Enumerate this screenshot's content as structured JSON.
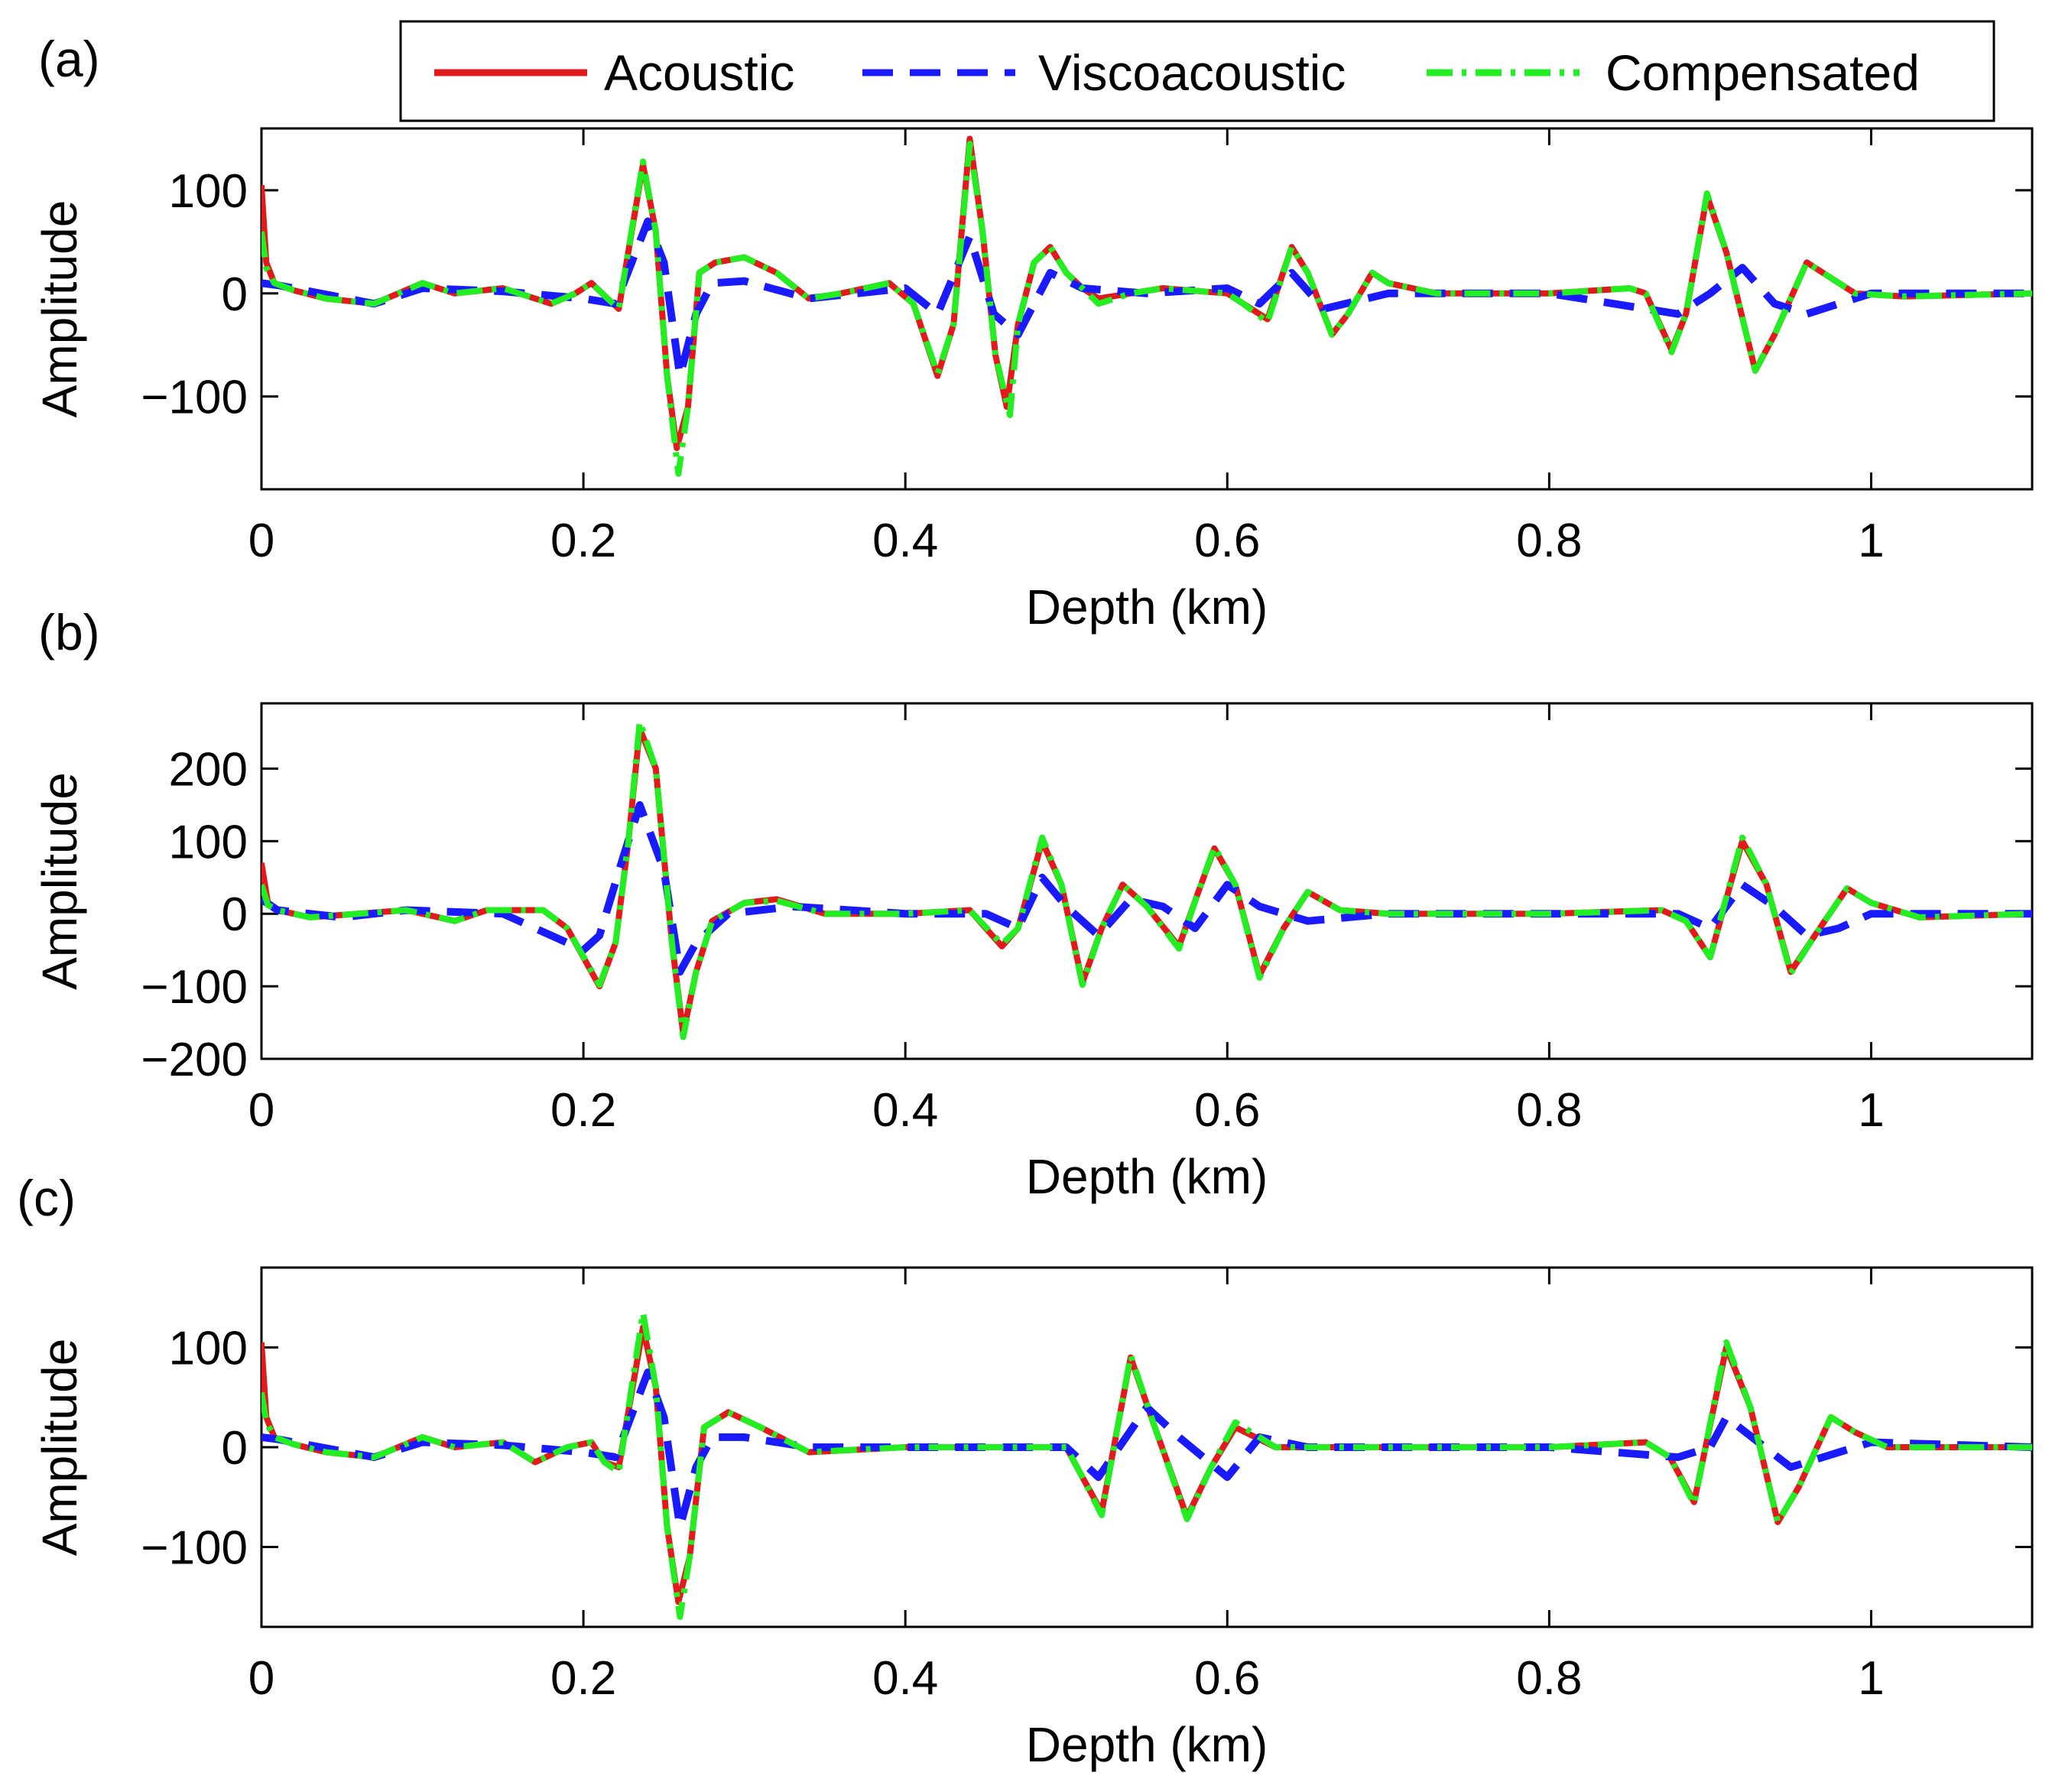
{
  "chart_data": [
    {
      "type": "line",
      "panel_label": "(a)",
      "xlabel": "Depth (km)",
      "ylabel": "Amplitude",
      "xlim": [
        0,
        1.1
      ],
      "ylim": [
        -190,
        160
      ],
      "xticks": [
        0,
        0.2,
        0.4,
        0.6,
        0.8,
        1
      ],
      "xtick_labels": [
        "0",
        "0.2",
        "0.4",
        "0.6",
        "0.8",
        "1"
      ],
      "yticks": [
        100,
        0,
        -100
      ],
      "ytick_labels": [
        "100",
        "0",
        "−100"
      ],
      "series": [
        {
          "name": "Acoustic",
          "color": "#e31a1c",
          "x": [
            0,
            0.003,
            0.008,
            0.02,
            0.04,
            0.07,
            0.1,
            0.12,
            0.15,
            0.17,
            0.18,
            0.195,
            0.205,
            0.215,
            0.222,
            0.237,
            0.245,
            0.252,
            0.258,
            0.265,
            0.272,
            0.282,
            0.3,
            0.32,
            0.34,
            0.36,
            0.39,
            0.405,
            0.42,
            0.43,
            0.44,
            0.448,
            0.456,
            0.463,
            0.47,
            0.48,
            0.49,
            0.5,
            0.51,
            0.52,
            0.54,
            0.56,
            0.6,
            0.61,
            0.625,
            0.64,
            0.65,
            0.665,
            0.675,
            0.69,
            0.7,
            0.73,
            0.8,
            0.85,
            0.86,
            0.876,
            0.885,
            0.898,
            0.91,
            0.928,
            0.94,
            0.96,
            0.975,
            0.99,
            1.02,
            1.1
          ],
          "y": [
            105,
            30,
            10,
            3,
            -5,
            -10,
            10,
            0,
            5,
            -5,
            -10,
            0,
            10,
            -5,
            -15,
            125,
            60,
            -80,
            -150,
            -110,
            20,
            30,
            35,
            20,
            -5,
            0,
            10,
            -10,
            -80,
            -30,
            150,
            60,
            -60,
            -110,
            -30,
            30,
            45,
            20,
            5,
            -5,
            0,
            5,
            0,
            -10,
            -25,
            45,
            20,
            -40,
            -20,
            20,
            10,
            0,
            0,
            5,
            0,
            -55,
            -20,
            95,
            40,
            -75,
            -40,
            30,
            15,
            0,
            -3,
            0
          ]
        },
        {
          "name": "Viscoacoustic",
          "color": "#1a1aff",
          "x": [
            0,
            0.01,
            0.03,
            0.07,
            0.1,
            0.15,
            0.2,
            0.22,
            0.24,
            0.25,
            0.26,
            0.27,
            0.28,
            0.3,
            0.34,
            0.4,
            0.42,
            0.44,
            0.455,
            0.47,
            0.49,
            0.51,
            0.55,
            0.6,
            0.62,
            0.64,
            0.66,
            0.7,
            0.8,
            0.88,
            0.9,
            0.92,
            0.94,
            0.96,
            1.0,
            1.1
          ],
          "y": [
            10,
            8,
            2,
            -10,
            5,
            2,
            -5,
            -10,
            70,
            30,
            -80,
            -20,
            10,
            12,
            -5,
            5,
            -20,
            55,
            -20,
            -40,
            20,
            5,
            0,
            5,
            -10,
            20,
            -15,
            0,
            0,
            -20,
            0,
            25,
            -10,
            -20,
            0,
            0
          ]
        },
        {
          "name": "Compensated",
          "color": "#22ee22",
          "x": [
            0,
            0.003,
            0.008,
            0.02,
            0.04,
            0.07,
            0.1,
            0.12,
            0.15,
            0.17,
            0.18,
            0.195,
            0.205,
            0.215,
            0.222,
            0.237,
            0.245,
            0.252,
            0.259,
            0.265,
            0.272,
            0.282,
            0.3,
            0.32,
            0.34,
            0.36,
            0.39,
            0.405,
            0.42,
            0.43,
            0.44,
            0.448,
            0.456,
            0.465,
            0.47,
            0.48,
            0.49,
            0.5,
            0.51,
            0.52,
            0.54,
            0.56,
            0.6,
            0.61,
            0.625,
            0.64,
            0.65,
            0.665,
            0.675,
            0.69,
            0.7,
            0.73,
            0.8,
            0.85,
            0.86,
            0.876,
            0.885,
            0.898,
            0.91,
            0.928,
            0.94,
            0.96,
            0.975,
            0.99,
            1.02,
            1.1
          ],
          "y": [
            60,
            25,
            10,
            3,
            -5,
            -10,
            10,
            0,
            5,
            -5,
            -10,
            0,
            10,
            -5,
            -15,
            128,
            60,
            -80,
            -175,
            -110,
            20,
            30,
            35,
            20,
            -5,
            0,
            10,
            -10,
            -78,
            -30,
            145,
            60,
            -60,
            -118,
            -30,
            30,
            45,
            20,
            5,
            -10,
            0,
            5,
            0,
            -10,
            -28,
            45,
            20,
            -40,
            -20,
            20,
            10,
            0,
            0,
            5,
            0,
            -57,
            -20,
            97,
            40,
            -75,
            -40,
            30,
            15,
            0,
            -3,
            0
          ]
        }
      ]
    },
    {
      "type": "line",
      "panel_label": "(b)",
      "xlabel": "Depth (km)",
      "ylabel": "Amplitude",
      "xlim": [
        0,
        1.1
      ],
      "ylim": [
        -200,
        290
      ],
      "xticks": [
        0,
        0.2,
        0.4,
        0.6,
        0.8,
        1
      ],
      "xtick_labels": [
        "0",
        "0.2",
        "0.4",
        "0.6",
        "0.8",
        "1"
      ],
      "yticks": [
        200,
        100,
        0,
        -100,
        -200
      ],
      "ytick_labels": [
        "200",
        "100",
        "0",
        "−100",
        "−200"
      ],
      "series": [
        {
          "name": "Acoustic",
          "color": "#e31a1c",
          "x": [
            0,
            0.004,
            0.01,
            0.03,
            0.06,
            0.09,
            0.12,
            0.14,
            0.175,
            0.19,
            0.21,
            0.22,
            0.228,
            0.235,
            0.245,
            0.255,
            0.262,
            0.27,
            0.28,
            0.3,
            0.32,
            0.35,
            0.4,
            0.44,
            0.46,
            0.47,
            0.485,
            0.497,
            0.51,
            0.522,
            0.535,
            0.55,
            0.57,
            0.582,
            0.592,
            0.605,
            0.62,
            0.635,
            0.65,
            0.67,
            0.7,
            0.8,
            0.87,
            0.885,
            0.9,
            0.92,
            0.935,
            0.95,
            0.965,
            0.985,
            1.0,
            1.03,
            1.1
          ],
          "y": [
            70,
            15,
            5,
            -5,
            0,
            5,
            -10,
            5,
            5,
            -20,
            -100,
            -40,
            100,
            255,
            200,
            -40,
            -165,
            -80,
            -10,
            15,
            20,
            0,
            0,
            5,
            -45,
            -20,
            100,
            40,
            -95,
            -20,
            40,
            10,
            -45,
            30,
            90,
            40,
            -85,
            -20,
            30,
            5,
            0,
            0,
            5,
            -10,
            -60,
            100,
            40,
            -80,
            -30,
            35,
            15,
            -5,
            0
          ]
        },
        {
          "name": "Viscoacoustic",
          "color": "#1a1aff",
          "x": [
            0,
            0.01,
            0.05,
            0.09,
            0.15,
            0.2,
            0.21,
            0.225,
            0.235,
            0.25,
            0.26,
            0.27,
            0.29,
            0.33,
            0.4,
            0.45,
            0.47,
            0.485,
            0.5,
            0.52,
            0.54,
            0.56,
            0.58,
            0.6,
            0.62,
            0.65,
            0.7,
            0.88,
            0.9,
            0.92,
            0.94,
            0.96,
            0.98,
            1.0,
            1.1
          ],
          "y": [
            20,
            5,
            -5,
            5,
            0,
            -50,
            -30,
            80,
            150,
            60,
            -80,
            -40,
            0,
            10,
            0,
            0,
            -20,
            50,
            10,
            -30,
            20,
            10,
            -20,
            40,
            10,
            -10,
            0,
            0,
            -20,
            40,
            10,
            -30,
            -20,
            0,
            0
          ]
        },
        {
          "name": "Compensated",
          "color": "#22ee22",
          "x": [
            0,
            0.004,
            0.01,
            0.03,
            0.06,
            0.09,
            0.12,
            0.14,
            0.175,
            0.19,
            0.21,
            0.22,
            0.228,
            0.235,
            0.245,
            0.255,
            0.262,
            0.27,
            0.28,
            0.3,
            0.32,
            0.35,
            0.4,
            0.44,
            0.46,
            0.47,
            0.485,
            0.497,
            0.51,
            0.522,
            0.535,
            0.55,
            0.57,
            0.582,
            0.592,
            0.605,
            0.62,
            0.635,
            0.65,
            0.67,
            0.7,
            0.8,
            0.87,
            0.885,
            0.9,
            0.92,
            0.935,
            0.95,
            0.965,
            0.985,
            1.0,
            1.03,
            1.1
          ],
          "y": [
            40,
            12,
            5,
            -5,
            0,
            5,
            -10,
            5,
            5,
            -20,
            -98,
            -40,
            100,
            265,
            200,
            -40,
            -170,
            -80,
            -10,
            15,
            18,
            0,
            0,
            5,
            -42,
            -20,
            105,
            40,
            -98,
            -20,
            40,
            10,
            -48,
            30,
            92,
            40,
            -88,
            -20,
            30,
            5,
            0,
            0,
            5,
            -10,
            -60,
            105,
            40,
            -82,
            -30,
            35,
            15,
            -5,
            0
          ]
        }
      ]
    },
    {
      "type": "line",
      "panel_label": "(c)",
      "xlabel": "Depth (km)",
      "ylabel": "Amplitude",
      "xlim": [
        0,
        1.1
      ],
      "ylim": [
        -180,
        180
      ],
      "xticks": [
        0,
        0.2,
        0.4,
        0.6,
        0.8,
        1
      ],
      "xtick_labels": [
        "0",
        "0.2",
        "0.4",
        "0.6",
        "0.8",
        "1"
      ],
      "yticks": [
        100,
        0,
        -100
      ],
      "ytick_labels": [
        "100",
        "0",
        "−100"
      ],
      "series": [
        {
          "name": "Acoustic",
          "color": "#e31a1c",
          "x": [
            0,
            0.003,
            0.008,
            0.02,
            0.04,
            0.07,
            0.1,
            0.12,
            0.15,
            0.17,
            0.19,
            0.205,
            0.213,
            0.222,
            0.237,
            0.245,
            0.252,
            0.259,
            0.266,
            0.275,
            0.29,
            0.31,
            0.34,
            0.4,
            0.45,
            0.5,
            0.51,
            0.522,
            0.54,
            0.555,
            0.575,
            0.59,
            0.605,
            0.63,
            0.65,
            0.8,
            0.86,
            0.875,
            0.89,
            0.91,
            0.925,
            0.942,
            0.955,
            0.975,
            0.99,
            1.01,
            1.1
          ],
          "y": [
            105,
            30,
            10,
            3,
            -5,
            -10,
            10,
            0,
            5,
            -15,
            0,
            5,
            -15,
            -20,
            120,
            60,
            -80,
            -155,
            -110,
            20,
            35,
            20,
            -5,
            0,
            0,
            0,
            -30,
            -65,
            90,
            20,
            -70,
            -20,
            20,
            0,
            0,
            0,
            5,
            -10,
            -55,
            100,
            40,
            -75,
            -40,
            30,
            15,
            0,
            0
          ]
        },
        {
          "name": "Viscoacoustic",
          "color": "#1a1aff",
          "x": [
            0,
            0.01,
            0.03,
            0.07,
            0.1,
            0.15,
            0.2,
            0.22,
            0.24,
            0.25,
            0.26,
            0.27,
            0.28,
            0.3,
            0.34,
            0.4,
            0.5,
            0.52,
            0.55,
            0.57,
            0.6,
            0.62,
            0.65,
            0.8,
            0.88,
            0.9,
            0.91,
            0.93,
            0.95,
            0.97,
            1.0,
            1.1
          ],
          "y": [
            10,
            8,
            2,
            -10,
            5,
            2,
            -5,
            -10,
            75,
            30,
            -80,
            -20,
            10,
            10,
            0,
            0,
            0,
            -30,
            40,
            10,
            -30,
            10,
            0,
            0,
            -10,
            0,
            30,
            5,
            -20,
            -10,
            5,
            0
          ]
        },
        {
          "name": "Compensated",
          "color": "#22ee22",
          "x": [
            0,
            0.003,
            0.008,
            0.02,
            0.04,
            0.07,
            0.1,
            0.12,
            0.15,
            0.17,
            0.19,
            0.205,
            0.213,
            0.222,
            0.237,
            0.245,
            0.252,
            0.26,
            0.266,
            0.275,
            0.29,
            0.31,
            0.34,
            0.4,
            0.45,
            0.5,
            0.51,
            0.522,
            0.54,
            0.555,
            0.575,
            0.59,
            0.605,
            0.63,
            0.65,
            0.8,
            0.86,
            0.875,
            0.89,
            0.91,
            0.925,
            0.942,
            0.955,
            0.975,
            0.99,
            1.01,
            1.1
          ],
          "y": [
            55,
            25,
            10,
            3,
            -5,
            -10,
            10,
            0,
            5,
            -15,
            0,
            5,
            -15,
            -25,
            135,
            60,
            -80,
            -170,
            -110,
            20,
            35,
            20,
            -5,
            0,
            0,
            0,
            -30,
            -68,
            92,
            20,
            -72,
            -20,
            25,
            0,
            0,
            0,
            5,
            -10,
            -57,
            105,
            40,
            -75,
            -40,
            30,
            15,
            0,
            0
          ]
        }
      ]
    }
  ],
  "legend": {
    "position": "top-right",
    "entries": [
      {
        "label": "Acoustic",
        "color": "#e31a1c",
        "style": "solid"
      },
      {
        "label": "Viscoacoustic",
        "color": "#1a1aff",
        "style": "dashed"
      },
      {
        "label": "Compensated",
        "color": "#22ee22",
        "style": "dashdot"
      }
    ]
  }
}
